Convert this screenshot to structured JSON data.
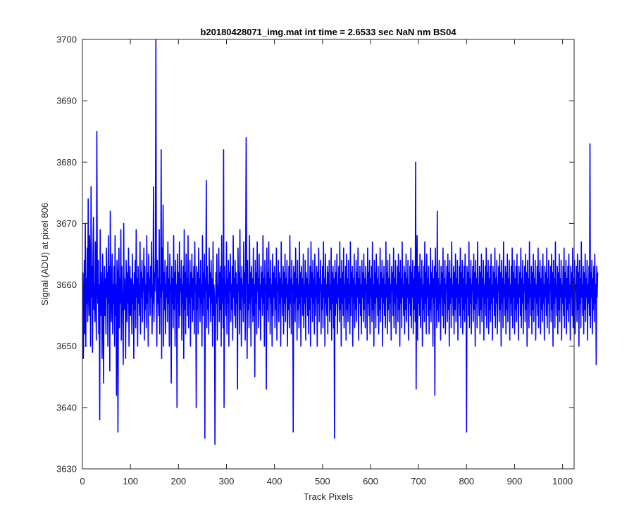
{
  "chart_data": {
    "type": "line",
    "title": "b20180428071_img.mat int time = 2.6533 sec  NaN nm BS04",
    "xlabel": "Track Pixels",
    "ylabel": "Signal (ADU) at pixel 806",
    "xlim": [
      0,
      1024
    ],
    "ylim": [
      3630,
      3700
    ],
    "x_ticks": [
      0,
      100,
      200,
      300,
      400,
      500,
      600,
      700,
      800,
      900,
      1000
    ],
    "y_ticks": [
      3630,
      3640,
      3650,
      3660,
      3670,
      3680,
      3690,
      3700
    ],
    "x_tick_labels": [
      "0",
      "100",
      "200",
      "300",
      "400",
      "500",
      "600",
      "700",
      "800",
      "900",
      "1000"
    ],
    "y_tick_labels": [
      "3630",
      "3640",
      "3650",
      "3660",
      "3670",
      "3680",
      "3690",
      "3700"
    ],
    "grid": false,
    "series": [
      {
        "color": "#0000ff",
        "x_start": 1,
        "x_step": 1,
        "values": [
          3662,
          3648,
          3656,
          3664,
          3652,
          3670,
          3650,
          3661,
          3657,
          3666,
          3654,
          3674,
          3660,
          3655,
          3668,
          3662,
          3650,
          3676,
          3658,
          3663,
          3649,
          3665,
          3671,
          3656,
          3660,
          3654,
          3667,
          3659,
          3651,
          3685,
          3661,
          3657,
          3664,
          3652,
          3660,
          3638,
          3669,
          3655,
          3662,
          3658,
          3648,
          3665,
          3660,
          3644,
          3659,
          3663,
          3655,
          3661,
          3652,
          3666,
          3658,
          3662,
          3650,
          3668,
          3657,
          3663,
          3646,
          3672,
          3659,
          3654,
          3661,
          3665,
          3652,
          3660,
          3657,
          3663,
          3650,
          3668,
          3655,
          3660,
          3642,
          3664,
          3662,
          3636,
          3658,
          3666,
          3653,
          3661,
          3657,
          3669,
          3651,
          3663,
          3659,
          3655,
          3647,
          3670,
          3656,
          3661,
          3658,
          3648,
          3664,
          3660,
          3654,
          3662,
          3657,
          3666,
          3650,
          3658,
          3663,
          3655,
          3661,
          3659,
          3652,
          3665,
          3657,
          3660,
          3648,
          3662,
          3656,
          3664,
          3653,
          3669,
          3658,
          3661,
          3650,
          3663,
          3657,
          3660,
          3655,
          3667,
          3652,
          3662,
          3658,
          3664,
          3654,
          3661,
          3659,
          3666,
          3651,
          3663,
          3656,
          3660,
          3653,
          3668,
          3657,
          3662,
          3650,
          3665,
          3659,
          3661,
          3655,
          3663,
          3658,
          3667,
          3652,
          3660,
          3657,
          3676,
          3654,
          3662,
          3659,
          3665,
          3700,
          3659,
          3650,
          3664,
          3657,
          3661,
          3655,
          3669,
          3652,
          3660,
          3658,
          3682,
          3648,
          3666,
          3659,
          3673,
          3650,
          3662,
          3656,
          3664,
          3652,
          3660,
          3658,
          3663,
          3654,
          3667,
          3657,
          3661,
          3650,
          3665,
          3659,
          3660,
          3644,
          3663,
          3657,
          3661,
          3653,
          3668,
          3656,
          3662,
          3650,
          3664,
          3658,
          3660,
          3640,
          3665,
          3657,
          3662,
          3653,
          3667,
          3655,
          3661,
          3659,
          3664,
          3651,
          3660,
          3657,
          3663,
          3648,
          3669,
          3656,
          3662,
          3652,
          3665,
          3658,
          3661,
          3655,
          3668,
          3653,
          3660,
          3657,
          3664,
          3650,
          3662,
          3658,
          3665,
          3654,
          3661,
          3656,
          3663,
          3652,
          3667,
          3659,
          3660,
          3640,
          3663,
          3656,
          3662,
          3652,
          3666,
          3658,
          3661,
          3654,
          3664,
          3657,
          3660,
          3650,
          3668,
          3655,
          3662,
          3658,
          3665,
          3635,
          3661,
          3659,
          3677,
          3653,
          3663,
          3656,
          3660,
          3652,
          3666,
          3658,
          3662,
          3654,
          3664,
          3657,
          3661,
          3650,
          3667,
          3655,
          3660,
          3658,
          3634,
          3652,
          3662,
          3657,
          3665,
          3651,
          3660,
          3658,
          3666,
          3654,
          3662,
          3656,
          3663,
          3650,
          3668,
          3657,
          3661,
          3653,
          3682,
          3640,
          3663,
          3658,
          3660,
          3655,
          3667,
          3652,
          3661,
          3657,
          3664,
          3650,
          3662,
          3659,
          3665,
          3654,
          3660,
          3656,
          3663,
          3651,
          3668,
          3658,
          3661,
          3655,
          3664,
          3653,
          3662,
          3657,
          3660,
          3643,
          3666,
          3659,
          3662,
          3652,
          3669,
          3656,
          3661,
          3650,
          3663,
          3658,
          3660,
          3654,
          3667,
          3657,
          3662,
          3651,
          3665,
          3684,
          3661,
          3648,
          3664,
          3656,
          3660,
          3653,
          3668,
          3657,
          3662,
          3650,
          3663,
          3658,
          3661,
          3654,
          3666,
          3655,
          3660,
          3645,
          3664,
          3657,
          3662,
          3652,
          3667,
          3659,
          3661,
          3653,
          3665,
          3656,
          3660,
          3651,
          3663,
          3658,
          3662,
          3655,
          3668,
          3657,
          3661,
          3650,
          3664,
          3659,
          3660,
          3643,
          3666,
          3656,
          3662,
          3654,
          3667,
          3658,
          3661,
          3652,
          3664,
          3657,
          3660,
          3650,
          3665,
          3655,
          3662,
          3658,
          3663,
          3653,
          3661,
          3656,
          3666,
          3651,
          3660,
          3659,
          3664,
          3654,
          3662,
          3657,
          3661,
          3650,
          3667,
          3658,
          3660,
          3655,
          3663,
          3652,
          3662,
          3657,
          3665,
          3654,
          3661,
          3658,
          3664,
          3650,
          3660,
          3656,
          3663,
          3653,
          3668,
          3657,
          3661,
          3652,
          3664,
          3659,
          3660,
          3636,
          3663,
          3657,
          3662,
          3654,
          3666,
          3658,
          3661,
          3651,
          3664,
          3656,
          3660,
          3653,
          3667,
          3657,
          3662,
          3650,
          3663,
          3658,
          3661,
          3655,
          3665,
          3653,
          3660,
          3657,
          3664,
          3651,
          3662,
          3658,
          3661,
          3655,
          3666,
          3652,
          3660,
          3656,
          3663,
          3650,
          3667,
          3658,
          3662,
          3654,
          3664,
          3657,
          3661,
          3652,
          3665,
          3655,
          3660,
          3658,
          3663,
          3650,
          3662,
          3657,
          3666,
          3654,
          3661,
          3659,
          3664,
          3652,
          3660,
          3656,
          3663,
          3653,
          3667,
          3658,
          3661,
          3650,
          3665,
          3657,
          3660,
          3655,
          3663,
          3652,
          3662,
          3658,
          3664,
          3654,
          3660,
          3656,
          3666,
          3651,
          3662,
          3657,
          3663,
          3653,
          3661,
          3635,
          3664,
          3655,
          3662,
          3657,
          3665,
          3652,
          3660,
          3658,
          3663,
          3654,
          3667,
          3656,
          3661,
          3650,
          3664,
          3657,
          3662,
          3655,
          3666,
          3653,
          3660,
          3658,
          3663,
          3651,
          3665,
          3656,
          3661,
          3654,
          3664,
          3657,
          3660,
          3652,
          3667,
          3655,
          3662,
          3658,
          3663,
          3650,
          3661,
          3657,
          3665,
          3653,
          3660,
          3656,
          3664,
          3654,
          3662,
          3658,
          3666,
          3651,
          3661,
          3657,
          3663,
          3655,
          3660,
          3652,
          3664,
          3658,
          3662,
          3654,
          3665,
          3656,
          3661,
          3653,
          3663,
          3659,
          3660,
          3651,
          3666,
          3657,
          3662,
          3655,
          3664,
          3652,
          3661,
          3658,
          3663,
          3654,
          3667,
          3656,
          3660,
          3650,
          3664,
          3657,
          3662,
          3653,
          3665,
          3658,
          3661,
          3655,
          3663,
          3652,
          3660,
          3656,
          3666,
          3654,
          3662,
          3658,
          3664,
          3650,
          3661,
          3657,
          3663,
          3655,
          3660,
          3653,
          3667,
          3658,
          3662,
          3652,
          3664,
          3656,
          3661,
          3654,
          3665,
          3657,
          3660,
          3651,
          3663,
          3659,
          3662,
          3655,
          3666,
          3653,
          3661,
          3657,
          3664,
          3652,
          3660,
          3658,
          3663,
          3654,
          3665,
          3656,
          3662,
          3650,
          3664,
          3657,
          3661,
          3653,
          3667,
          3658,
          3660,
          3655,
          3663,
          3652,
          3662,
          3656,
          3665,
          3654,
          3661,
          3658,
          3664,
          3651,
          3660,
          3657,
          3663,
          3655,
          3666,
          3653,
          3662,
          3658,
          3664,
          3652,
          3661,
          3656,
          3663,
          3654,
          3680,
          3643,
          3660,
          3668,
          3651,
          3663,
          3657,
          3662,
          3655,
          3665,
          3653,
          3661,
          3658,
          3664,
          3650,
          3660,
          3656,
          3663,
          3654,
          3667,
          3657,
          3662,
          3652,
          3665,
          3658,
          3661,
          3655,
          3663,
          3652,
          3660,
          3656,
          3666,
          3654,
          3662,
          3658,
          3664,
          3650,
          3661,
          3657,
          3663,
          3642,
          3666,
          3658,
          3662,
          3653,
          3672,
          3656,
          3661,
          3654,
          3664,
          3657,
          3660,
          3651,
          3663,
          3658,
          3662,
          3655,
          3666,
          3653,
          3661,
          3657,
          3664,
          3652,
          3660,
          3659,
          3663,
          3654,
          3665,
          3656,
          3662,
          3650,
          3664,
          3657,
          3661,
          3653,
          3667,
          3658,
          3660,
          3655,
          3663,
          3652,
          3662,
          3656,
          3665,
          3654,
          3661,
          3658,
          3664,
          3651,
          3660,
          3657,
          3663,
          3655,
          3666,
          3653,
          3662,
          3658,
          3664,
          3652,
          3661,
          3656,
          3663,
          3654,
          3665,
          3657,
          3660,
          3636,
          3663,
          3658,
          3662,
          3655,
          3667,
          3653,
          3661,
          3657,
          3664,
          3652,
          3660,
          3659,
          3663,
          3654,
          3665,
          3656,
          3662,
          3650,
          3664,
          3657,
          3661,
          3653,
          3667,
          3658,
          3660,
          3655,
          3663,
          3652,
          3662,
          3656,
          3665,
          3654,
          3661,
          3658,
          3664,
          3651,
          3660,
          3657,
          3663,
          3655,
          3666,
          3653,
          3662,
          3658,
          3664,
          3652,
          3661,
          3656,
          3663,
          3654,
          3665,
          3657,
          3660,
          3651,
          3663,
          3658,
          3662,
          3655,
          3666,
          3653,
          3661,
          3657,
          3664,
          3652,
          3660,
          3659,
          3663,
          3654,
          3665,
          3656,
          3662,
          3650,
          3664,
          3657,
          3661,
          3653,
          3667,
          3658,
          3660,
          3655,
          3663,
          3652,
          3662,
          3656,
          3665,
          3654,
          3661,
          3658,
          3664,
          3651,
          3660,
          3657,
          3663,
          3655,
          3666,
          3653,
          3662,
          3658,
          3664,
          3652,
          3661,
          3656,
          3663,
          3654,
          3665,
          3657,
          3660,
          3651,
          3663,
          3658,
          3662,
          3655,
          3666,
          3653,
          3661,
          3657,
          3664,
          3652,
          3660,
          3659,
          3663,
          3654,
          3665,
          3656,
          3662,
          3650,
          3664,
          3657,
          3661,
          3653,
          3667,
          3658,
          3660,
          3655,
          3663,
          3652,
          3662,
          3656,
          3665,
          3654,
          3661,
          3658,
          3664,
          3651,
          3660,
          3657,
          3663,
          3655,
          3666,
          3653,
          3662,
          3658,
          3664,
          3652,
          3661,
          3656,
          3663,
          3654,
          3665,
          3657,
          3660,
          3651,
          3663,
          3658,
          3662,
          3655,
          3666,
          3653,
          3661,
          3657,
          3664,
          3652,
          3660,
          3659,
          3663,
          3654,
          3665,
          3656,
          3662,
          3650,
          3664,
          3657,
          3661,
          3653,
          3667,
          3658,
          3660,
          3655,
          3663,
          3652,
          3662,
          3656,
          3665,
          3654,
          3661,
          3658,
          3664,
          3651,
          3660,
          3657,
          3663,
          3655,
          3666,
          3653,
          3662,
          3658,
          3664,
          3652,
          3661,
          3656,
          3663,
          3654,
          3665,
          3657,
          3660,
          3651,
          3663,
          3658,
          3662,
          3655,
          3666,
          3653,
          3661,
          3657,
          3664,
          3652,
          3660,
          3659,
          3663,
          3654,
          3665,
          3656,
          3662,
          3650,
          3664,
          3657,
          3661,
          3653,
          3667,
          3658,
          3660,
          3655,
          3663,
          3652,
          3662,
          3656,
          3665,
          3654,
          3661,
          3658,
          3664,
          3651,
          3660,
          3657,
          3663,
          3655,
          3683,
          3653,
          3662,
          3658,
          3664,
          3652,
          3661,
          3656,
          3663,
          3654,
          3665,
          3657,
          3660,
          3647,
          3663,
          3658,
          3662
        ]
      }
    ]
  }
}
